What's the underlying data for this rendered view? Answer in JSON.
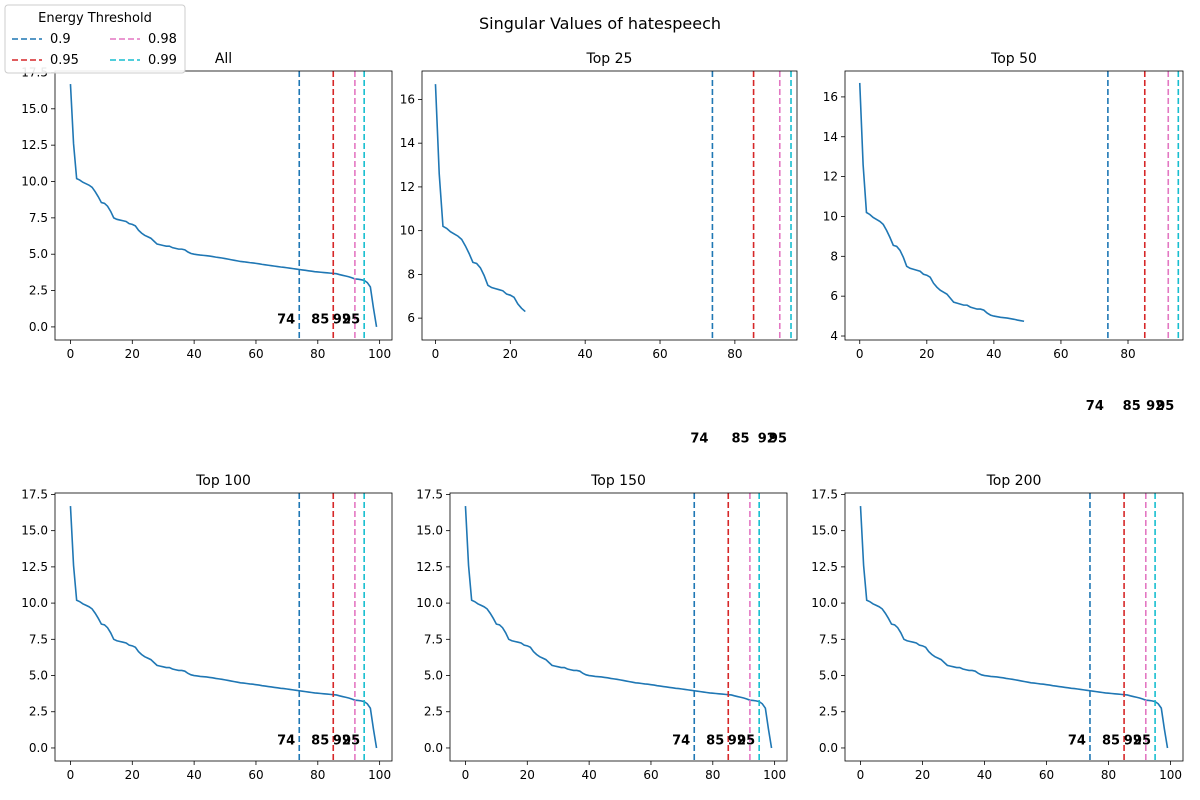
{
  "figure": {
    "suptitle": "Singular Values of hatespeech"
  },
  "legend": {
    "title": "Energy Threshold",
    "placement": "top-left",
    "entries": [
      {
        "label": "0.9",
        "color": "#1f77b4"
      },
      {
        "label": "0.95",
        "color": "#d62728"
      },
      {
        "label": "0.98",
        "color": "#e377c2"
      },
      {
        "label": "0.99",
        "color": "#17becf"
      }
    ]
  },
  "chart_data": [
    {
      "type": "line",
      "title": "All",
      "n": 100,
      "xlim": [
        -5,
        104
      ],
      "xticks": [
        0,
        20,
        40,
        60,
        80,
        100
      ],
      "ylim": [
        -0.9,
        17.6
      ],
      "yticks": [
        0.0,
        2.5,
        5.0,
        7.5,
        10.0,
        12.5,
        15.0,
        17.5
      ],
      "ytick_labels": [
        "0.0",
        "2.5",
        "5.0",
        "7.5",
        "10.0",
        "12.5",
        "15.0",
        "17.5"
      ],
      "line_color": "#1f77b4",
      "thresholds": [
        {
          "x": 74,
          "label": "74",
          "color": "#1f77b4"
        },
        {
          "x": 85,
          "label": "85",
          "color": "#d62728"
        },
        {
          "x": 92,
          "label": "92",
          "color": "#e377c2"
        },
        {
          "x": 95,
          "label": "95",
          "color": "#17becf"
        }
      ],
      "threshold_label_y": 0.5,
      "grid": false
    },
    {
      "type": "line",
      "title": "Top 25",
      "n": 25,
      "xlim": [
        -3.6,
        96.6
      ],
      "xticks": [
        0,
        20,
        40,
        60,
        80
      ],
      "ylim": [
        5.0,
        17.3
      ],
      "yticks": [
        6,
        8,
        10,
        12,
        14,
        16
      ],
      "ytick_labels": [
        "6",
        "8",
        "10",
        "12",
        "14",
        "16"
      ],
      "line_color": "#1f77b4",
      "thresholds": [
        {
          "x": 74,
          "label": "74",
          "color": "#1f77b4"
        },
        {
          "x": 85,
          "label": "85",
          "color": "#d62728"
        },
        {
          "x": 92,
          "label": "92",
          "color": "#e377c2"
        },
        {
          "x": 95,
          "label": "95",
          "color": "#17becf"
        }
      ],
      "threshold_label_y": 0.5,
      "grid": false
    },
    {
      "type": "line",
      "title": "Top 50",
      "n": 50,
      "xlim": [
        -4.4,
        96.4
      ],
      "xticks": [
        0,
        20,
        40,
        60,
        80
      ],
      "ylim": [
        3.8,
        17.3
      ],
      "yticks": [
        4,
        6,
        8,
        10,
        12,
        14,
        16
      ],
      "ytick_labels": [
        "4",
        "6",
        "8",
        "10",
        "12",
        "14",
        "16"
      ],
      "line_color": "#1f77b4",
      "thresholds": [
        {
          "x": 74,
          "label": "74",
          "color": "#1f77b4"
        },
        {
          "x": 85,
          "label": "85",
          "color": "#d62728"
        },
        {
          "x": 92,
          "label": "92",
          "color": "#e377c2"
        },
        {
          "x": 95,
          "label": "95",
          "color": "#17becf"
        }
      ],
      "threshold_label_y": 0.5,
      "grid": false
    },
    {
      "type": "line",
      "title": "Top 100",
      "n": 100,
      "xlim": [
        -5,
        104
      ],
      "xticks": [
        0,
        20,
        40,
        60,
        80,
        100
      ],
      "ylim": [
        -0.9,
        17.6
      ],
      "yticks": [
        0.0,
        2.5,
        5.0,
        7.5,
        10.0,
        12.5,
        15.0,
        17.5
      ],
      "ytick_labels": [
        "0.0",
        "2.5",
        "5.0",
        "7.5",
        "10.0",
        "12.5",
        "15.0",
        "17.5"
      ],
      "line_color": "#1f77b4",
      "thresholds": [
        {
          "x": 74,
          "label": "74",
          "color": "#1f77b4"
        },
        {
          "x": 85,
          "label": "85",
          "color": "#d62728"
        },
        {
          "x": 92,
          "label": "92",
          "color": "#e377c2"
        },
        {
          "x": 95,
          "label": "95",
          "color": "#17becf"
        }
      ],
      "threshold_label_y": 0.5,
      "grid": false
    },
    {
      "type": "line",
      "title": "Top 150",
      "n": 100,
      "xlim": [
        -5,
        104
      ],
      "xticks": [
        0,
        20,
        40,
        60,
        80,
        100
      ],
      "ylim": [
        -0.9,
        17.6
      ],
      "yticks": [
        0.0,
        2.5,
        5.0,
        7.5,
        10.0,
        12.5,
        15.0,
        17.5
      ],
      "ytick_labels": [
        "0.0",
        "2.5",
        "5.0",
        "7.5",
        "10.0",
        "12.5",
        "15.0",
        "17.5"
      ],
      "line_color": "#1f77b4",
      "thresholds": [
        {
          "x": 74,
          "label": "74",
          "color": "#1f77b4"
        },
        {
          "x": 85,
          "label": "85",
          "color": "#d62728"
        },
        {
          "x": 92,
          "label": "92",
          "color": "#e377c2"
        },
        {
          "x": 95,
          "label": "95",
          "color": "#17becf"
        }
      ],
      "threshold_label_y": 0.5,
      "grid": false
    },
    {
      "type": "line",
      "title": "Top 200",
      "n": 100,
      "xlim": [
        -5,
        104
      ],
      "xticks": [
        0,
        20,
        40,
        60,
        80,
        100
      ],
      "ylim": [
        -0.9,
        17.6
      ],
      "yticks": [
        0.0,
        2.5,
        5.0,
        7.5,
        10.0,
        12.5,
        15.0,
        17.5
      ],
      "ytick_labels": [
        "0.0",
        "2.5",
        "5.0",
        "7.5",
        "10.0",
        "12.5",
        "15.0",
        "17.5"
      ],
      "line_color": "#1f77b4",
      "thresholds": [
        {
          "x": 74,
          "label": "74",
          "color": "#1f77b4"
        },
        {
          "x": 85,
          "label": "85",
          "color": "#d62728"
        },
        {
          "x": 92,
          "label": "92",
          "color": "#e377c2"
        },
        {
          "x": 95,
          "label": "95",
          "color": "#17becf"
        }
      ],
      "threshold_label_y": 0.5,
      "grid": false
    }
  ],
  "singular_values": [
    16.7,
    12.6,
    10.2,
    10.1,
    9.95,
    9.85,
    9.75,
    9.6,
    9.3,
    8.95,
    8.55,
    8.5,
    8.3,
    7.95,
    7.5,
    7.4,
    7.35,
    7.3,
    7.25,
    7.1,
    7.05,
    6.95,
    6.65,
    6.45,
    6.3,
    6.2,
    6.1,
    5.9,
    5.7,
    5.65,
    5.6,
    5.55,
    5.55,
    5.45,
    5.4,
    5.35,
    5.35,
    5.3,
    5.15,
    5.05,
    5.0,
    4.97,
    4.94,
    4.92,
    4.9,
    4.87,
    4.84,
    4.8,
    4.77,
    4.74,
    4.7,
    4.66,
    4.62,
    4.58,
    4.54,
    4.5,
    4.48,
    4.45,
    4.42,
    4.4,
    4.37,
    4.34,
    4.3,
    4.27,
    4.24,
    4.21,
    4.18,
    4.15,
    4.12,
    4.1,
    4.07,
    4.04,
    4.01,
    3.98,
    3.95,
    3.92,
    3.89,
    3.86,
    3.83,
    3.8,
    3.78,
    3.76,
    3.74,
    3.72,
    3.7,
    3.68,
    3.66,
    3.6,
    3.55,
    3.5,
    3.45,
    3.38,
    3.3,
    3.28,
    3.25,
    3.2,
    3.05,
    2.75,
    1.3,
    0.0
  ]
}
